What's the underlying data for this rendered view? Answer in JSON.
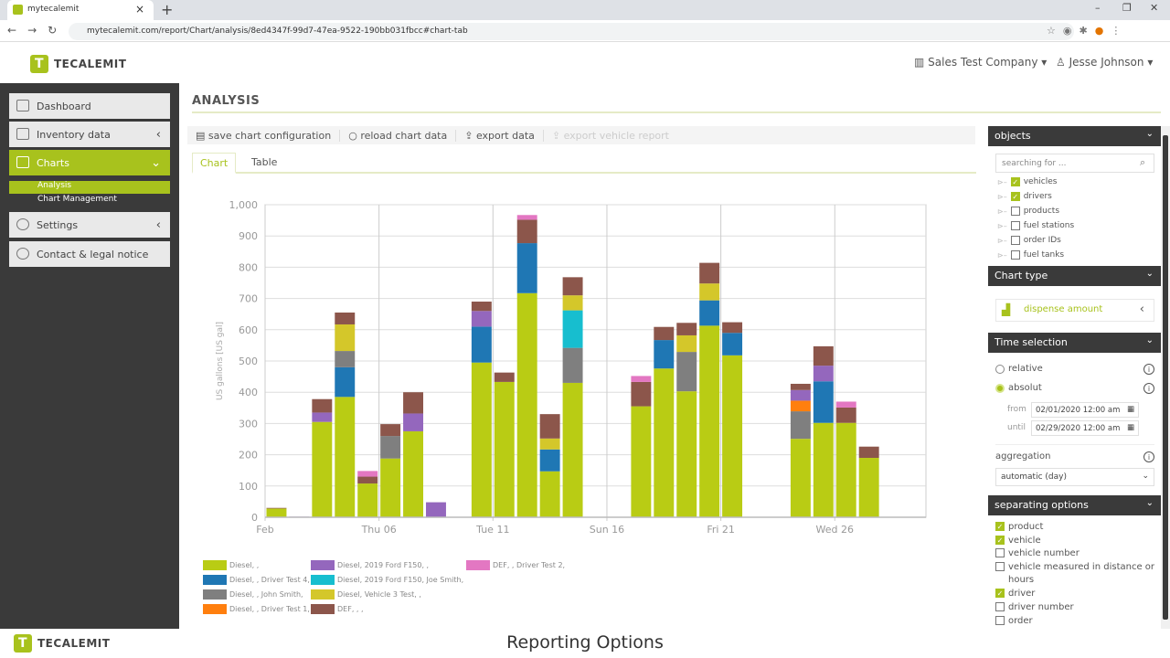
{
  "browser": {
    "tab_title": "mytecalemit",
    "url": "mytecalemit.com/report/Chart/analysis/8ed4347f-99d7-47ea-9522-190bb031fbcc#chart-tab"
  },
  "header": {
    "logo": "TECALEMIT",
    "company": "Sales Test Company",
    "user": "Jesse Johnson"
  },
  "sidebar": {
    "items": [
      {
        "label": "Dashboard"
      },
      {
        "label": "Inventory data"
      },
      {
        "label": "Charts"
      },
      {
        "label": "Settings"
      },
      {
        "label": "Contact & legal notice"
      }
    ],
    "subitems": [
      {
        "label": "Analysis"
      },
      {
        "label": "Chart Management"
      }
    ]
  },
  "main": {
    "title": "ANALYSIS",
    "toolbar": {
      "save": "save chart configuration",
      "reload": "reload chart data",
      "export": "export data",
      "export_vehicle": "export vehicle report"
    },
    "tabs": [
      {
        "label": "Chart"
      },
      {
        "label": "Table"
      }
    ]
  },
  "chart_data": {
    "type": "bar",
    "stacked": true,
    "ylabel": "US gallons [US gal]",
    "ylim": [
      0,
      1000
    ],
    "yticks": [
      "0",
      "100",
      "200",
      "300",
      "400",
      "500",
      "600",
      "700",
      "800",
      "900",
      "1,000"
    ],
    "x": [
      "Feb 01",
      "Feb 02",
      "Feb 03",
      "Feb 04",
      "Feb 05",
      "Feb 06",
      "Feb 07",
      "Feb 08",
      "Feb 09",
      "Feb 10",
      "Feb 11",
      "Feb 12",
      "Feb 13",
      "Feb 14",
      "Feb 15",
      "Feb 16",
      "Feb 17",
      "Feb 18",
      "Feb 19",
      "Feb 20",
      "Feb 21",
      "Feb 22",
      "Feb 23",
      "Feb 24",
      "Feb 25",
      "Feb 26",
      "Feb 27",
      "Feb 28",
      "Feb 29"
    ],
    "xticks": [
      {
        "index": 0,
        "label": "Feb"
      },
      {
        "index": 5,
        "label": "Thu 06"
      },
      {
        "index": 10,
        "label": "Tue 11"
      },
      {
        "index": 15,
        "label": "Sun 16"
      },
      {
        "index": 20,
        "label": "Fri 21"
      },
      {
        "index": 25,
        "label": "Wed 26"
      }
    ],
    "grid": true,
    "legend": "bottom",
    "series": [
      {
        "name": "Diesel, , ",
        "color": "#b9cc14",
        "values": [
          28,
          0,
          305,
          385,
          108,
          188,
          275,
          0,
          0,
          495,
          433,
          717,
          147,
          430,
          0,
          0,
          355,
          476,
          403,
          613,
          518,
          0,
          0,
          251,
          302,
          302,
          190,
          0,
          0
        ]
      },
      {
        "name": "Diesel, , Driver Test 4,",
        "color": "#1f77b4",
        "values": [
          0,
          0,
          0,
          95,
          0,
          0,
          0,
          0,
          0,
          115,
          0,
          160,
          70,
          0,
          0,
          0,
          0,
          91,
          0,
          81,
          72,
          0,
          0,
          0,
          133,
          0,
          0,
          0,
          0
        ]
      },
      {
        "name": "Diesel, , John Smith,",
        "color": "#7f7f7f",
        "values": [
          0,
          0,
          0,
          52,
          0,
          72,
          0,
          0,
          0,
          0,
          0,
          0,
          0,
          112,
          0,
          0,
          0,
          0,
          126,
          0,
          0,
          0,
          0,
          88,
          0,
          0,
          0,
          0,
          0
        ]
      },
      {
        "name": "Diesel, , Driver Test 1,",
        "color": "#ff7f0e",
        "values": [
          0,
          0,
          0,
          0,
          0,
          0,
          0,
          0,
          0,
          0,
          0,
          0,
          0,
          0,
          0,
          0,
          0,
          0,
          0,
          0,
          0,
          0,
          0,
          34,
          0,
          0,
          0,
          0,
          0
        ]
      },
      {
        "name": "Diesel, 2019 Ford F150, ,",
        "color": "#9467bd",
        "values": [
          0,
          2,
          30,
          0,
          0,
          0,
          57,
          48,
          0,
          50,
          0,
          0,
          0,
          0,
          0,
          0,
          0,
          0,
          0,
          0,
          0,
          0,
          0,
          34,
          50,
          0,
          0,
          0,
          0
        ]
      },
      {
        "name": "Diesel, 2019 Ford F150, Joe Smith,",
        "color": "#17becf",
        "values": [
          0,
          0,
          0,
          0,
          0,
          0,
          0,
          0,
          0,
          0,
          0,
          0,
          0,
          120,
          0,
          0,
          0,
          0,
          0,
          0,
          0,
          0,
          0,
          0,
          0,
          0,
          0,
          0,
          0
        ]
      },
      {
        "name": "Diesel, Vehicle 3 Test, ,",
        "color": "#d4c72a",
        "values": [
          0,
          0,
          0,
          85,
          0,
          0,
          0,
          0,
          0,
          0,
          0,
          0,
          35,
          48,
          0,
          0,
          0,
          0,
          53,
          54,
          0,
          0,
          0,
          0,
          0,
          0,
          0,
          0,
          0
        ]
      },
      {
        "name": "DEF, , ,",
        "color": "#8c564b",
        "values": [
          2,
          0,
          43,
          38,
          22,
          38,
          68,
          0,
          0,
          30,
          30,
          75,
          78,
          58,
          0,
          0,
          78,
          42,
          40,
          66,
          34,
          0,
          0,
          20,
          62,
          49,
          36,
          0,
          0
        ]
      },
      {
        "name": "DEF, , Driver Test 2,",
        "color": "#e377c2",
        "values": [
          0,
          0,
          0,
          0,
          18,
          0,
          0,
          0,
          0,
          0,
          0,
          15,
          0,
          0,
          0,
          0,
          19,
          0,
          0,
          0,
          0,
          0,
          0,
          0,
          0,
          19,
          0,
          0,
          0
        ]
      }
    ]
  },
  "right_panel": {
    "objects": {
      "title": "objects",
      "search_placeholder": "searching for ...",
      "items": [
        {
          "label": "vehicles",
          "checked": true
        },
        {
          "label": "drivers",
          "checked": true
        },
        {
          "label": "products",
          "checked": false
        },
        {
          "label": "fuel stations",
          "checked": false
        },
        {
          "label": "order IDs",
          "checked": false
        },
        {
          "label": "fuel tanks",
          "checked": false
        }
      ]
    },
    "chart_type": {
      "title": "Chart type",
      "value": "dispense amount"
    },
    "time": {
      "title": "Time selection",
      "relative": "relative",
      "absolut": "absolut",
      "selected": "absolut",
      "from_label": "from",
      "from": "02/01/2020 12:00 am",
      "until_label": "until",
      "until": "02/29/2020 12:00 am",
      "aggregation_label": "aggregation",
      "aggregation": "automatic (day)"
    },
    "separating": {
      "title": "separating options",
      "items": [
        {
          "label": "product",
          "checked": true
        },
        {
          "label": "vehicle",
          "checked": true
        },
        {
          "label": "vehicle number",
          "checked": false
        },
        {
          "label": "vehicle measured in distance or hours",
          "checked": false
        },
        {
          "label": "driver",
          "checked": true
        },
        {
          "label": "driver number",
          "checked": false
        },
        {
          "label": "order",
          "checked": false
        }
      ]
    }
  },
  "footer": {
    "logo": "TECALEMIT",
    "title": "Reporting Options"
  },
  "colors": {
    "accent": "#a8c21d",
    "sidebar": "#3a3a3a"
  }
}
